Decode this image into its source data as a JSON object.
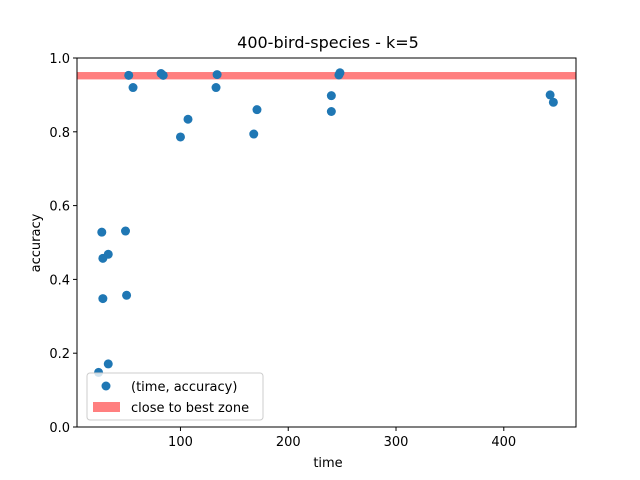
{
  "chart_data": {
    "type": "scatter",
    "title": "400-bird-species - k=5",
    "xlabel": "time",
    "ylabel": "accuracy",
    "xlim": [
      4,
      467
    ],
    "ylim": [
      0.0,
      1.0
    ],
    "xticks": [
      100,
      200,
      300,
      400
    ],
    "yticks": [
      0.0,
      0.2,
      0.4,
      0.6,
      0.8,
      1.0
    ],
    "xtick_labels": [
      "100",
      "200",
      "300",
      "400"
    ],
    "ytick_labels": [
      "0.0",
      "0.2",
      "0.4",
      "0.6",
      "0.8",
      "1.0"
    ],
    "grid": false,
    "legend_position": "lower-left",
    "series": [
      {
        "name": "(time, accuracy)",
        "color": "#1f77b4",
        "x": [
          24,
          27,
          28,
          28,
          33,
          33,
          49,
          50,
          52,
          56,
          82,
          84,
          100,
          107,
          133,
          134,
          168,
          171,
          240,
          240,
          247,
          248,
          443,
          446
        ],
        "y": [
          0.148,
          0.528,
          0.457,
          0.348,
          0.468,
          0.171,
          0.531,
          0.357,
          0.953,
          0.92,
          0.958,
          0.953,
          0.786,
          0.834,
          0.92,
          0.955,
          0.794,
          0.86,
          0.898,
          0.855,
          0.954,
          0.96,
          0.9,
          0.88
        ]
      }
    ],
    "bands": [
      {
        "name": "close to best zone",
        "color": "#ff7f7f",
        "y": 0.952,
        "thickness": 0.02
      }
    ]
  }
}
